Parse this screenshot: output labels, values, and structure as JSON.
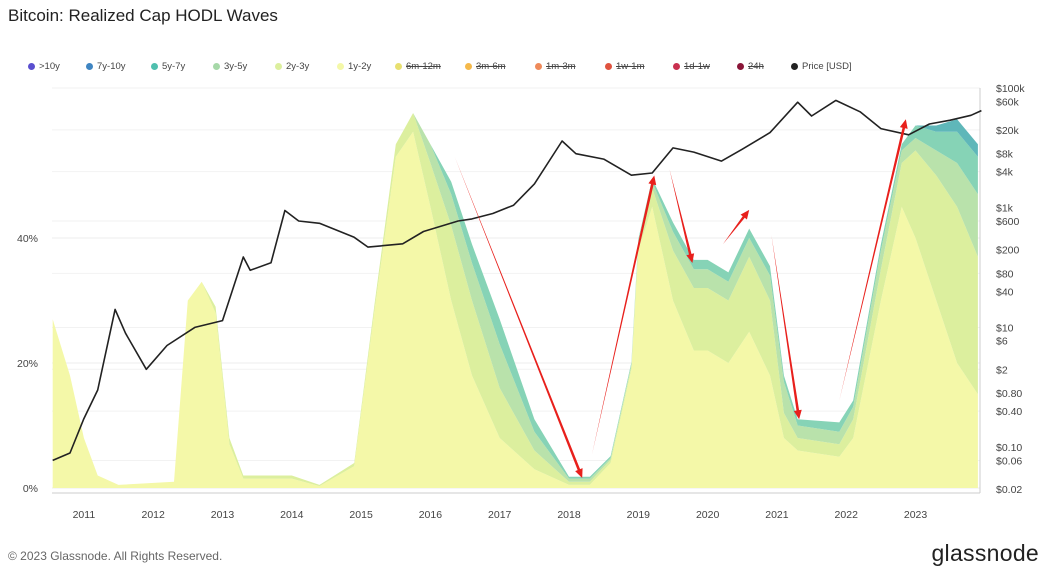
{
  "title": "Bitcoin: Realized Cap HODL Waves",
  "footer": "© 2023 Glassnode. All Rights Reserved.",
  "logo": "glassnode",
  "legend": [
    {
      "label": ">10y",
      "color": "#5a4fcf",
      "strike": false
    },
    {
      "label": "7y-10y",
      "color": "#3f85c2",
      "strike": false
    },
    {
      "label": "5y-7y",
      "color": "#4fbfae",
      "strike": false
    },
    {
      "label": "3y-5y",
      "color": "#a6d8a8",
      "strike": false
    },
    {
      "label": "2y-3y",
      "color": "#dcef9e",
      "strike": false
    },
    {
      "label": "1y-2y",
      "color": "#f4f8a8",
      "strike": false
    },
    {
      "label": "6m-12m",
      "color": "#e8e070",
      "strike": true
    },
    {
      "label": "3m-6m",
      "color": "#f5b94a",
      "strike": true
    },
    {
      "label": "1m-3m",
      "color": "#ef8a5a",
      "strike": true
    },
    {
      "label": "1w-1m",
      "color": "#e0533f",
      "strike": true
    },
    {
      "label": "1d-1w",
      "color": "#c9304f",
      "strike": true
    },
    {
      "label": "24h",
      "color": "#8a1538",
      "strike": true
    },
    {
      "label": "Price [USD]",
      "color": "#222222",
      "strike": false
    }
  ],
  "chart_data": {
    "type": "area",
    "title": "Bitcoin: Realized Cap HODL Waves",
    "xlim": [
      2010.54,
      2023.93
    ],
    "ylim_left": [
      0,
      64
    ],
    "ylim_right_log": [
      0.02,
      100000
    ],
    "x_ticks": [
      "2011",
      "2012",
      "2013",
      "2014",
      "2015",
      "2016",
      "2017",
      "2018",
      "2019",
      "2020",
      "2021",
      "2022",
      "2023"
    ],
    "y_left_ticks": [
      {
        "v": 0,
        "label": "0%"
      },
      {
        "v": 20,
        "label": "20%"
      },
      {
        "v": 40,
        "label": "40%"
      }
    ],
    "y_right_ticks": [
      {
        "v": 100000,
        "label": "$100k"
      },
      {
        "v": 60000,
        "label": "$60k"
      },
      {
        "v": 20000,
        "label": "$20k"
      },
      {
        "v": 8000,
        "label": "$8k"
      },
      {
        "v": 4000,
        "label": "$4k"
      },
      {
        "v": 1000,
        "label": "$1k"
      },
      {
        "v": 600,
        "label": "$600"
      },
      {
        "v": 200,
        "label": "$200"
      },
      {
        "v": 80,
        "label": "$80"
      },
      {
        "v": 40,
        "label": "$40"
      },
      {
        "v": 10,
        "label": "$10"
      },
      {
        "v": 6,
        "label": "$6"
      },
      {
        "v": 2,
        "label": "$2"
      },
      {
        "v": 0.8,
        "label": "$0.80"
      },
      {
        "v": 0.4,
        "label": "$0.40"
      },
      {
        "v": 0.1,
        "label": "$0.10"
      },
      {
        "v": 0.06,
        "label": "$0.06"
      },
      {
        "v": 0.02,
        "label": "$0.02"
      }
    ],
    "x": [
      2010.55,
      2010.8,
      2011.0,
      2011.2,
      2011.5,
      2012.3,
      2012.5,
      2012.7,
      2012.9,
      2013.1,
      2013.3,
      2014.0,
      2014.4,
      2014.9,
      2015.2,
      2015.5,
      2015.75,
      2016.0,
      2016.3,
      2016.6,
      2017.0,
      2017.5,
      2018.0,
      2018.3,
      2018.6,
      2018.9,
      2019.0,
      2019.2,
      2019.5,
      2019.8,
      2020.0,
      2020.3,
      2020.6,
      2020.9,
      2021.1,
      2021.3,
      2021.9,
      2022.1,
      2022.5,
      2022.8,
      2023.0,
      2023.3,
      2023.6,
      2023.9
    ],
    "series": [
      {
        "name": "1y-2y",
        "color": "#f4f8a8",
        "values": [
          27,
          18,
          8,
          2,
          0.5,
          1,
          30,
          33,
          28,
          7,
          1.5,
          1.5,
          0.3,
          3.5,
          29,
          53,
          57,
          45,
          30,
          18,
          8,
          3,
          0.5,
          0.5,
          4,
          19,
          38,
          45,
          30,
          22,
          22,
          20,
          25,
          18,
          8,
          6,
          5,
          8,
          30,
          45,
          40,
          30,
          20,
          15
        ]
      },
      {
        "name": "2y-3y",
        "color": "#dcef9e",
        "values": [
          0,
          0,
          0,
          0,
          0,
          0,
          0,
          0,
          1,
          1,
          0.5,
          0.5,
          0.2,
          0.5,
          1,
          2,
          3,
          7,
          12,
          12,
          8,
          3,
          0.5,
          0.5,
          0.5,
          0.5,
          1,
          3,
          8,
          10,
          10,
          10,
          12,
          12,
          4,
          2,
          2,
          3,
          5,
          7,
          14,
          20,
          25,
          22
        ]
      },
      {
        "name": "3y-5y",
        "color": "#b9e2ab",
        "values": [
          0,
          0,
          0,
          0,
          0,
          0,
          0,
          0,
          0,
          0,
          0,
          0,
          0,
          0,
          0,
          0,
          0,
          3,
          5,
          6,
          7,
          3,
          0.5,
          0.5,
          0.3,
          0.3,
          0.5,
          1,
          3,
          3,
          3,
          3,
          3,
          4,
          5,
          2,
          2,
          2,
          3,
          2,
          2,
          4,
          7,
          10
        ]
      },
      {
        "name": "5y-7y",
        "color": "#86d3b6",
        "values": [
          0,
          0,
          0,
          0,
          0,
          0,
          0,
          0,
          0,
          0,
          0,
          0,
          0,
          0,
          0,
          0,
          0,
          0,
          2,
          3,
          4,
          2,
          0.3,
          0.3,
          0.3,
          0.3,
          0.3,
          0.5,
          1.5,
          1.5,
          1.5,
          1.5,
          1.5,
          1.5,
          1,
          1,
          1.5,
          1,
          1,
          1,
          2,
          3,
          5,
          6
        ]
      },
      {
        "name": "7y-10y",
        "color": "#5fb7b9",
        "values": [
          0,
          0,
          0,
          0,
          0,
          0,
          0,
          0,
          0,
          0,
          0,
          0,
          0,
          0,
          0,
          0,
          0,
          0,
          0,
          0,
          0,
          0,
          0,
          0,
          0,
          0,
          0,
          0,
          0,
          0,
          0,
          0,
          0,
          0,
          0,
          0,
          0,
          0,
          0,
          0,
          0,
          1,
          2,
          2
        ]
      }
    ],
    "price": {
      "name": "Price [USD]",
      "x": [
        2010.55,
        2010.8,
        2011.0,
        2011.2,
        2011.45,
        2011.6,
        2011.9,
        2012.2,
        2012.6,
        2013.0,
        2013.3,
        2013.4,
        2013.7,
        2013.9,
        2014.1,
        2014.4,
        2014.9,
        2015.1,
        2015.6,
        2015.9,
        2016.4,
        2016.6,
        2016.9,
        2017.2,
        2017.5,
        2017.9,
        2018.1,
        2018.5,
        2018.9,
        2019.2,
        2019.5,
        2019.8,
        2020.2,
        2020.5,
        2020.9,
        2021.3,
        2021.5,
        2021.85,
        2022.2,
        2022.5,
        2022.9,
        2023.2,
        2023.5,
        2023.8,
        2023.95
      ],
      "values": [
        0.06,
        0.08,
        0.3,
        0.9,
        20,
        8,
        2,
        5,
        10,
        13,
        150,
        90,
        120,
        900,
        600,
        550,
        320,
        220,
        250,
        400,
        600,
        650,
        800,
        1100,
        2500,
        13000,
        8000,
        6500,
        3500,
        3800,
        10000,
        8500,
        6000,
        9500,
        18000,
        58000,
        34000,
        62000,
        40000,
        21000,
        16500,
        25000,
        29000,
        35000,
        42000
      ]
    },
    "annotations": [
      {
        "type": "arrow",
        "from": [
          2016.35,
          53
        ],
        "to": [
          2018.19,
          1.6
        ]
      },
      {
        "type": "arrow",
        "from": [
          2018.33,
          5.3
        ],
        "to": [
          2019.23,
          50
        ]
      },
      {
        "type": "arrow",
        "from": [
          2019.45,
          51
        ],
        "to": [
          2019.78,
          36
        ]
      },
      {
        "type": "arrow",
        "from": [
          2020.22,
          39
        ],
        "to": [
          2020.6,
          44.5
        ]
      },
      {
        "type": "arrow",
        "from": [
          2020.92,
          40.5
        ],
        "to": [
          2021.32,
          11
        ]
      },
      {
        "type": "arrow",
        "from": [
          2021.9,
          14
        ],
        "to": [
          2022.86,
          59
        ]
      }
    ]
  }
}
